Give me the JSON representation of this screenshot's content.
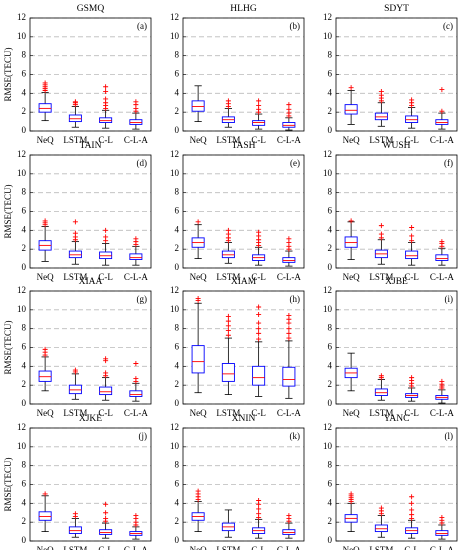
{
  "chart_data": [
    {
      "type": "box",
      "title": "GSMQ",
      "panel_label": "(a)",
      "ylabel": "RMSE(TECU)",
      "categories": [
        "NeQ",
        "LSTM",
        "C-L",
        "C-L-A"
      ],
      "ylim": [
        0,
        12
      ],
      "yticks": [
        0,
        2,
        4,
        6,
        8,
        10,
        12
      ],
      "grid": true,
      "box_color": "#0000ff",
      "median_color": "#ff0000",
      "flier_color": "#ff0000",
      "boxes": [
        {
          "whislo": 1.1,
          "q1": 2.0,
          "med": 2.4,
          "q3": 2.9,
          "whishi": 4.1,
          "fliers": [
            4.3,
            4.5,
            4.7,
            4.9,
            5.1
          ]
        },
        {
          "whislo": 0.4,
          "q1": 1.0,
          "med": 1.3,
          "q3": 1.7,
          "whishi": 2.6,
          "fliers": [
            2.8,
            3.0,
            3.1
          ]
        },
        {
          "whislo": 0.3,
          "q1": 0.9,
          "med": 1.1,
          "q3": 1.4,
          "whishi": 2.2,
          "fliers": [
            2.4,
            2.7,
            3.0,
            3.4,
            4.2,
            4.7
          ]
        },
        {
          "whislo": 0.2,
          "q1": 0.7,
          "med": 0.9,
          "q3": 1.2,
          "whishi": 1.9,
          "fliers": [
            2.1,
            2.4,
            2.8,
            3.1
          ]
        }
      ]
    },
    {
      "type": "box",
      "title": "HLHG",
      "panel_label": "(b)",
      "categories": [
        "NeQ",
        "LSTM",
        "C-L",
        "C-L-A"
      ],
      "ylim": [
        0,
        12
      ],
      "yticks": [
        0,
        2,
        4,
        6,
        8,
        10,
        12
      ],
      "grid": true,
      "box_color": "#0000ff",
      "median_color": "#ff0000",
      "flier_color": "#ff0000",
      "boxes": [
        {
          "whislo": 1.0,
          "q1": 2.1,
          "med": 2.6,
          "q3": 3.2,
          "whishi": 4.8,
          "fliers": []
        },
        {
          "whislo": 0.4,
          "q1": 0.9,
          "med": 1.2,
          "q3": 1.5,
          "whishi": 2.4,
          "fliers": [
            2.6,
            2.9,
            3.2
          ]
        },
        {
          "whislo": 0.2,
          "q1": 0.6,
          "med": 0.9,
          "q3": 1.1,
          "whishi": 1.8,
          "fliers": [
            2.0,
            2.3,
            2.7,
            3.2
          ]
        },
        {
          "whislo": 0.1,
          "q1": 0.4,
          "med": 0.6,
          "q3": 0.9,
          "whishi": 1.4,
          "fliers": [
            1.6,
            1.9,
            2.3,
            2.8
          ]
        }
      ]
    },
    {
      "type": "box",
      "title": "SDYT",
      "panel_label": "(c)",
      "categories": [
        "NeQ",
        "LSTM",
        "C-L",
        "C-L-A"
      ],
      "ylim": [
        0,
        12
      ],
      "yticks": [
        0,
        2,
        4,
        6,
        8,
        10,
        12
      ],
      "grid": true,
      "box_color": "#0000ff",
      "median_color": "#ff0000",
      "flier_color": "#ff0000",
      "boxes": [
        {
          "whislo": 0.7,
          "q1": 1.8,
          "med": 2.2,
          "q3": 2.8,
          "whishi": 4.3,
          "fliers": [
            4.6
          ]
        },
        {
          "whislo": 0.5,
          "q1": 1.2,
          "med": 1.5,
          "q3": 1.9,
          "whishi": 3.0,
          "fliers": [
            3.2,
            3.5,
            3.8,
            4.2
          ]
        },
        {
          "whislo": 0.3,
          "q1": 0.9,
          "med": 1.2,
          "q3": 1.6,
          "whishi": 2.5,
          "fliers": [
            2.7,
            3.0,
            3.3
          ]
        },
        {
          "whislo": 0.2,
          "q1": 0.7,
          "med": 0.9,
          "q3": 1.2,
          "whishi": 1.9,
          "fliers": [
            2.1,
            4.4
          ]
        }
      ]
    },
    {
      "type": "box",
      "title": "TAIN",
      "panel_label": "(d)",
      "ylabel": "RMSE(TECU)",
      "categories": [
        "NeQ",
        "LSTM",
        "C-L",
        "C-L-A"
      ],
      "ylim": [
        0,
        12
      ],
      "yticks": [
        0,
        2,
        4,
        6,
        8,
        10,
        12
      ],
      "grid": true,
      "box_color": "#0000ff",
      "median_color": "#ff0000",
      "flier_color": "#ff0000",
      "boxes": [
        {
          "whislo": 0.7,
          "q1": 1.9,
          "med": 2.4,
          "q3": 2.9,
          "whishi": 4.4,
          "fliers": [
            4.6,
            4.8,
            5.0
          ]
        },
        {
          "whislo": 0.4,
          "q1": 1.1,
          "med": 1.4,
          "q3": 1.8,
          "whishi": 2.8,
          "fliers": [
            3.0,
            3.3,
            3.7,
            4.9
          ]
        },
        {
          "whislo": 0.3,
          "q1": 1.0,
          "med": 1.3,
          "q3": 1.7,
          "whishi": 2.6,
          "fliers": [
            2.9,
            3.3,
            4.0
          ]
        },
        {
          "whislo": 0.3,
          "q1": 0.9,
          "med": 1.1,
          "q3": 1.5,
          "whishi": 2.3,
          "fliers": [
            2.5,
            2.8,
            3.1
          ]
        }
      ]
    },
    {
      "type": "box",
      "title": "TASH",
      "panel_label": "(e)",
      "categories": [
        "NeQ",
        "LSTM",
        "C-L",
        "C-L-A"
      ],
      "ylim": [
        0,
        12
      ],
      "yticks": [
        0,
        2,
        4,
        6,
        8,
        10,
        12
      ],
      "grid": true,
      "box_color": "#0000ff",
      "median_color": "#ff0000",
      "flier_color": "#ff0000",
      "boxes": [
        {
          "whislo": 1.0,
          "q1": 2.2,
          "med": 2.7,
          "q3": 3.2,
          "whishi": 4.6,
          "fliers": [
            4.9
          ]
        },
        {
          "whislo": 0.5,
          "q1": 1.1,
          "med": 1.4,
          "q3": 1.8,
          "whishi": 2.7,
          "fliers": [
            2.9,
            3.2,
            3.6,
            4.0
          ]
        },
        {
          "whislo": 0.3,
          "q1": 0.8,
          "med": 1.1,
          "q3": 1.4,
          "whishi": 2.2,
          "fliers": [
            2.4,
            2.7,
            3.0,
            3.4,
            3.8
          ]
        },
        {
          "whislo": 0.2,
          "q1": 0.6,
          "med": 0.8,
          "q3": 1.1,
          "whishi": 1.8,
          "fliers": [
            2.0,
            2.3,
            2.7,
            3.1
          ]
        }
      ]
    },
    {
      "type": "box",
      "title": "WUSH",
      "panel_label": "(f)",
      "categories": [
        "NeQ",
        "LSTM",
        "C-L",
        "C-L-A"
      ],
      "ylim": [
        0,
        12
      ],
      "yticks": [
        0,
        2,
        4,
        6,
        8,
        10,
        12
      ],
      "grid": true,
      "box_color": "#0000ff",
      "median_color": "#ff0000",
      "flier_color": "#ff0000",
      "boxes": [
        {
          "whislo": 0.9,
          "q1": 2.2,
          "med": 2.7,
          "q3": 3.3,
          "whishi": 4.9,
          "fliers": [
            5.0
          ]
        },
        {
          "whislo": 0.4,
          "q1": 1.1,
          "med": 1.5,
          "q3": 1.9,
          "whishi": 3.0,
          "fliers": [
            3.2,
            3.6,
            4.5
          ]
        },
        {
          "whislo": 0.3,
          "q1": 1.0,
          "med": 1.3,
          "q3": 1.8,
          "whishi": 2.7,
          "fliers": [
            2.9,
            3.4,
            4.3
          ]
        },
        {
          "whislo": 0.3,
          "q1": 0.8,
          "med": 1.0,
          "q3": 1.4,
          "whishi": 2.1,
          "fliers": [
            2.3,
            2.6,
            2.8
          ]
        }
      ]
    },
    {
      "type": "box",
      "title": "XIAA",
      "panel_label": "(g)",
      "ylabel": "RMSE(TECU)",
      "categories": [
        "NeQ",
        "LSTM",
        "C-L",
        "C-L-A"
      ],
      "ylim": [
        0,
        12
      ],
      "yticks": [
        0,
        2,
        4,
        6,
        8,
        10,
        12
      ],
      "grid": true,
      "box_color": "#0000ff",
      "median_color": "#ff0000",
      "flier_color": "#ff0000",
      "boxes": [
        {
          "whislo": 1.4,
          "q1": 2.4,
          "med": 2.9,
          "q3": 3.5,
          "whishi": 5.0,
          "fliers": [
            5.2,
            5.5,
            5.8
          ]
        },
        {
          "whislo": 0.5,
          "q1": 1.1,
          "med": 1.5,
          "q3": 2.0,
          "whishi": 3.2,
          "fliers": [
            3.4,
            3.6
          ]
        },
        {
          "whislo": 0.4,
          "q1": 1.0,
          "med": 1.3,
          "q3": 1.8,
          "whishi": 2.8,
          "fliers": [
            3.0,
            3.3,
            4.6,
            4.8
          ]
        },
        {
          "whislo": 0.3,
          "q1": 0.8,
          "med": 1.0,
          "q3": 1.4,
          "whishi": 2.2,
          "fliers": [
            2.4,
            2.7,
            4.3
          ]
        }
      ]
    },
    {
      "type": "box",
      "title": "XIAM",
      "panel_label": "(h)",
      "categories": [
        "NeQ",
        "LSTM",
        "C-L",
        "C-L-A"
      ],
      "ylim": [
        0,
        12
      ],
      "yticks": [
        0,
        2,
        4,
        6,
        8,
        10,
        12
      ],
      "grid": true,
      "box_color": "#0000ff",
      "median_color": "#ff0000",
      "flier_color": "#ff0000",
      "boxes": [
        {
          "whislo": 1.2,
          "q1": 3.3,
          "med": 4.5,
          "q3": 6.2,
          "whishi": 10.7,
          "fliers": [
            11.0,
            11.2
          ]
        },
        {
          "whislo": 1.0,
          "q1": 2.4,
          "med": 3.2,
          "q3": 4.3,
          "whishi": 7.0,
          "fliers": [
            7.3,
            7.8,
            8.3,
            8.8,
            9.3
          ]
        },
        {
          "whislo": 0.8,
          "q1": 2.0,
          "med": 2.8,
          "q3": 4.0,
          "whishi": 6.6,
          "fliers": [
            6.9,
            7.5,
            8.0,
            8.6,
            9.5,
            10.3
          ]
        },
        {
          "whislo": 0.6,
          "q1": 1.9,
          "med": 2.6,
          "q3": 3.9,
          "whishi": 6.7,
          "fliers": [
            7.0,
            7.5,
            8.0,
            8.6,
            9.0,
            9.4
          ]
        }
      ]
    },
    {
      "type": "box",
      "title": "XJBE",
      "panel_label": "(i)",
      "categories": [
        "NeQ",
        "LSTM",
        "C-L",
        "C-L-A"
      ],
      "ylim": [
        0,
        12
      ],
      "yticks": [
        0,
        2,
        4,
        6,
        8,
        10,
        12
      ],
      "grid": true,
      "box_color": "#0000ff",
      "median_color": "#ff0000",
      "flier_color": "#ff0000",
      "boxes": [
        {
          "whislo": 1.4,
          "q1": 2.8,
          "med": 3.3,
          "q3": 3.8,
          "whishi": 5.4,
          "fliers": []
        },
        {
          "whislo": 0.4,
          "q1": 0.9,
          "med": 1.2,
          "q3": 1.6,
          "whishi": 2.6,
          "fliers": [
            2.8,
            3.0
          ]
        },
        {
          "whislo": 0.3,
          "q1": 0.7,
          "med": 0.9,
          "q3": 1.1,
          "whishi": 1.7,
          "fliers": [
            1.9,
            2.2,
            2.5,
            2.8
          ]
        },
        {
          "whislo": 0.1,
          "q1": 0.5,
          "med": 0.7,
          "q3": 0.9,
          "whishi": 1.5,
          "fliers": [
            1.7,
            1.9,
            2.1,
            2.4
          ]
        }
      ]
    },
    {
      "type": "box",
      "title": "XJKE",
      "panel_label": "(j)",
      "ylabel": "RMSE(TECU)",
      "categories": [
        "NeQ",
        "LSTM",
        "C-L",
        "C-L-A"
      ],
      "ylim": [
        0,
        12
      ],
      "yticks": [
        0,
        2,
        4,
        6,
        8,
        10,
        12
      ],
      "grid": true,
      "box_color": "#0000ff",
      "median_color": "#ff0000",
      "flier_color": "#ff0000",
      "boxes": [
        {
          "whislo": 1.0,
          "q1": 2.2,
          "med": 2.6,
          "q3": 3.1,
          "whishi": 4.8,
          "fliers": [
            5.0
          ]
        },
        {
          "whislo": 0.4,
          "q1": 0.8,
          "med": 1.1,
          "q3": 1.5,
          "whishi": 2.4,
          "fliers": [
            2.6,
            2.9
          ]
        },
        {
          "whislo": 0.3,
          "q1": 0.7,
          "med": 0.9,
          "q3": 1.2,
          "whishi": 1.9,
          "fliers": [
            2.1,
            2.4,
            3.0,
            3.9
          ]
        },
        {
          "whislo": 0.2,
          "q1": 0.6,
          "med": 0.8,
          "q3": 1.0,
          "whishi": 1.5,
          "fliers": [
            1.7,
            2.0,
            2.4,
            2.7
          ]
        }
      ]
    },
    {
      "type": "box",
      "title": "XNIN",
      "panel_label": "(k)",
      "categories": [
        "NeQ",
        "LSTM",
        "C-L",
        "C-L-A"
      ],
      "ylim": [
        0,
        12
      ],
      "yticks": [
        0,
        2,
        4,
        6,
        8,
        10,
        12
      ],
      "grid": true,
      "box_color": "#0000ff",
      "median_color": "#ff0000",
      "flier_color": "#ff0000",
      "boxes": [
        {
          "whislo": 1.0,
          "q1": 2.2,
          "med": 2.6,
          "q3": 3.0,
          "whishi": 4.2,
          "fliers": [
            4.4,
            4.7,
            5.0,
            5.3
          ]
        },
        {
          "whislo": 0.4,
          "q1": 1.1,
          "med": 1.5,
          "q3": 1.9,
          "whishi": 3.3,
          "fliers": []
        },
        {
          "whislo": 0.3,
          "q1": 0.8,
          "med": 1.1,
          "q3": 1.4,
          "whishi": 2.3,
          "fliers": [
            2.5,
            2.9,
            3.4,
            3.9,
            4.3
          ]
        },
        {
          "whislo": 0.3,
          "q1": 0.7,
          "med": 0.9,
          "q3": 1.2,
          "whishi": 1.9,
          "fliers": [
            2.1,
            2.4,
            2.7
          ]
        }
      ]
    },
    {
      "type": "box",
      "title": "YANC",
      "panel_label": "(l)",
      "categories": [
        "NeQ",
        "LSTM",
        "C-L",
        "C-L-A"
      ],
      "ylim": [
        0,
        12
      ],
      "yticks": [
        0,
        2,
        4,
        6,
        8,
        10,
        12
      ],
      "grid": true,
      "box_color": "#0000ff",
      "median_color": "#ff0000",
      "flier_color": "#ff0000",
      "boxes": [
        {
          "whislo": 1.0,
          "q1": 2.0,
          "med": 2.4,
          "q3": 2.8,
          "whishi": 4.0,
          "fliers": [
            4.2,
            4.4,
            4.6,
            4.8,
            5.0
          ]
        },
        {
          "whislo": 0.4,
          "q1": 1.0,
          "med": 1.3,
          "q3": 1.7,
          "whishi": 2.7,
          "fliers": [
            2.9,
            3.2,
            3.5
          ]
        },
        {
          "whislo": 0.3,
          "q1": 0.8,
          "med": 1.1,
          "q3": 1.4,
          "whishi": 2.2,
          "fliers": [
            2.4,
            2.8,
            3.3,
            4.0,
            4.7
          ]
        },
        {
          "whislo": 0.2,
          "q1": 0.6,
          "med": 0.8,
          "q3": 1.1,
          "whishi": 1.7,
          "fliers": [
            1.9,
            2.2,
            2.5
          ]
        }
      ]
    }
  ]
}
